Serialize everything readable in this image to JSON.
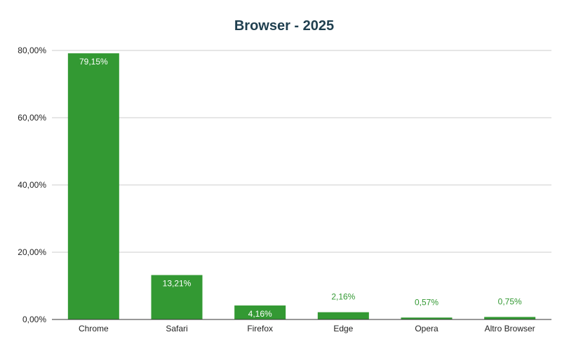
{
  "chart_data": {
    "type": "bar",
    "title": "Browser - 2025",
    "xlabel": "",
    "ylabel": "",
    "categories": [
      "Chrome",
      "Safari",
      "Firefox",
      "Edge",
      "Opera",
      "Altro Browser"
    ],
    "values": [
      79.15,
      13.21,
      4.16,
      2.16,
      0.57,
      0.75
    ],
    "data_labels": [
      "79,15%",
      "13,21%",
      "4,16%",
      "2,16%",
      "0,57%",
      "0,75%"
    ],
    "ylim": [
      0,
      80
    ],
    "yticks": [
      0,
      20,
      40,
      60,
      80
    ],
    "ytick_labels": [
      "0,00%",
      "20,00%",
      "40,00%",
      "60,00%",
      "80,00%"
    ],
    "grid": true,
    "legend": "none"
  },
  "colors": {
    "bar": "#339933",
    "title": "#1f3f4f",
    "grid": "#cccccc",
    "axis": "#333333",
    "label_inside": "#ffffff",
    "label_outside": "#339933"
  }
}
